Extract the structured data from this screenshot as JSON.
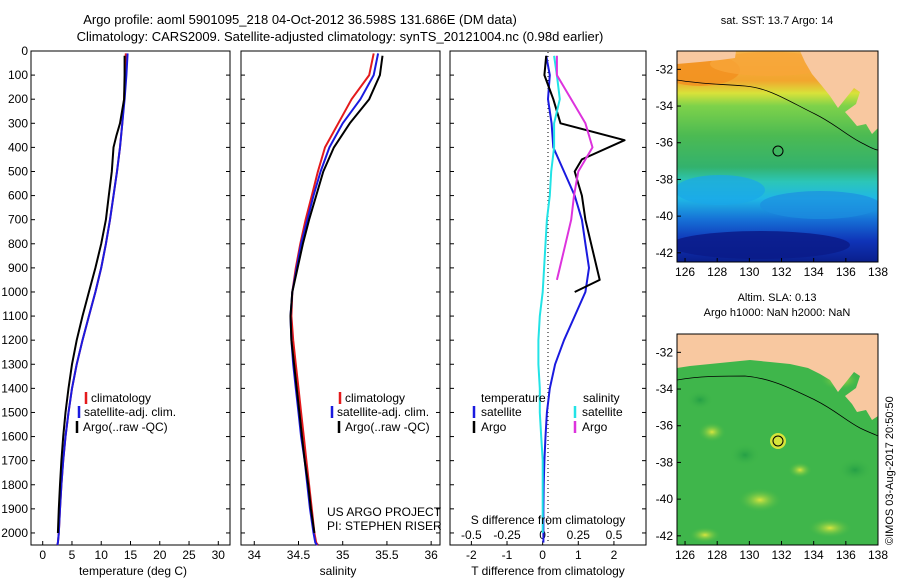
{
  "header": {
    "line1": "Argo profile: aoml 5901095_218 04-Oct-2012 36.598S 131.686E (DM data)",
    "line2": "Climatology: CARS2009. Satellite-adjusted climatology: synTS_20121004.nc (0.98d earlier)"
  },
  "colors": {
    "climatology": "#e41a1c",
    "satellite": "#1a1adf",
    "argo": "#000000",
    "salinity_sat": "#22e3e6",
    "salinity_argo": "#dd33dd",
    "land": "#f8c8a0"
  },
  "depth_axis": {
    "ticks": [
      "0",
      "100",
      "200",
      "300",
      "400",
      "500",
      "600",
      "700",
      "800",
      "900",
      "1000",
      "1100",
      "1200",
      "1300",
      "1400",
      "1500",
      "1600",
      "1700",
      "1800",
      "1900",
      "2000"
    ]
  },
  "temperature_panel": {
    "xlabel": "temperature (deg C)",
    "xticks": [
      "0",
      "5",
      "10",
      "15",
      "20",
      "25",
      "30"
    ],
    "legend": [
      "climatology",
      "satellite-adj. clim.",
      "Argo(..raw -QC)"
    ]
  },
  "salinity_panel": {
    "xlabel": "salinity",
    "xticks": [
      "34",
      "34.5",
      "35",
      "35.5",
      "36"
    ],
    "legend": [
      "climatology",
      "satellite-adj. clim.",
      "Argo(..raw -QC)"
    ],
    "credit1": "US ARGO PROJECT",
    "credit2": "PI: STEPHEN RISER"
  },
  "difference_panel": {
    "xlabel": "T difference from climatology",
    "top_label": "S difference from climatology",
    "t_ticks": [
      "-2",
      "-1",
      "0",
      "1",
      "2"
    ],
    "s_ticks": [
      "-0.5",
      "-0.25",
      "0",
      "0.25",
      "0.5"
    ],
    "legend_temp_title": "temperature",
    "legend_sal_title": "salinity",
    "legend_temp": [
      "satellite",
      "Argo"
    ],
    "legend_sal": [
      "satellite",
      "Argo"
    ]
  },
  "map_sst": {
    "title": "sat. SST: 13.7  Argo: 14",
    "yticks": [
      "-32",
      "-34",
      "-36",
      "-38",
      "-40",
      "-42"
    ],
    "xticks": [
      "126",
      "128",
      "130",
      "132",
      "134",
      "136",
      "138"
    ]
  },
  "map_sla": {
    "title1": "Altim. SLA: 0.13",
    "title2": "Argo h1000: NaN h2000: NaN",
    "yticks": [
      "-32",
      "-34",
      "-36",
      "-38",
      "-40",
      "-42"
    ],
    "xticks": [
      "126",
      "128",
      "130",
      "132",
      "134",
      "136",
      "138"
    ]
  },
  "watermark": "©IMOS 03-Aug-2017 20:50:50",
  "chart_data": [
    {
      "type": "line",
      "name": "temperature profile",
      "xlabel": "temperature (deg C)",
      "ylabel": "",
      "xlim": [
        -2,
        32
      ],
      "ylim": [
        2050,
        0
      ],
      "series": [
        {
          "name": "climatology",
          "x": [
            14.2,
            14.1,
            13.9,
            13.6,
            13.2,
            12.7,
            12.1,
            11.5,
            10.8,
            10.0,
            9.0,
            7.9,
            6.8,
            5.8,
            5.0,
            4.4,
            3.9,
            3.5,
            3.2,
            2.95,
            2.75,
            2.6,
            2.5
          ],
          "y": [
            10,
            100,
            200,
            300,
            400,
            500,
            600,
            700,
            800,
            900,
            1000,
            1100,
            1200,
            1300,
            1400,
            1500,
            1600,
            1700,
            1800,
            1900,
            2000,
            2040,
            2050
          ]
        },
        {
          "name": "satellite-adj. clim.",
          "x": [
            14.5,
            14.3,
            14.0,
            13.6,
            13.2,
            12.7,
            12.1,
            11.5,
            10.8,
            10.0,
            9.0,
            7.9,
            6.8,
            5.8,
            5.0,
            4.4,
            3.9,
            3.5,
            3.2,
            2.95,
            2.75,
            2.6,
            2.5
          ],
          "y": [
            10,
            100,
            200,
            300,
            400,
            500,
            600,
            700,
            800,
            900,
            1000,
            1100,
            1200,
            1300,
            1400,
            1500,
            1600,
            1700,
            1800,
            1900,
            2000,
            2040,
            2050
          ]
        },
        {
          "name": "Argo(..raw -QC)",
          "x": [
            14.0,
            14.0,
            13.9,
            13.2,
            12.6,
            12.1,
            11.8,
            11.3,
            10.8,
            10.0,
            9.0,
            7.9,
            6.8,
            5.8,
            5.0,
            4.4,
            3.9,
            3.5,
            3.2,
            2.95,
            2.75,
            2.6
          ],
          "y": [
            20,
            100,
            200,
            300,
            350,
            400,
            500,
            600,
            700,
            800,
            900,
            1000,
            1100,
            1200,
            1300,
            1400,
            1500,
            1600,
            1700,
            1800,
            1900,
            2000
          ]
        }
      ]
    },
    {
      "type": "line",
      "name": "salinity profile",
      "xlabel": "salinity",
      "ylabel": "",
      "xlim": [
        33.85,
        36.1
      ],
      "ylim": [
        2050,
        0
      ],
      "series": [
        {
          "name": "climatology",
          "x": [
            35.35,
            35.3,
            35.1,
            34.95,
            34.8,
            34.72,
            34.65,
            34.58,
            34.52,
            34.47,
            34.43,
            34.42,
            34.44,
            34.47,
            34.5,
            34.53,
            34.56,
            34.59,
            34.62,
            34.65,
            34.68,
            34.7,
            34.72
          ],
          "y": [
            10,
            100,
            200,
            300,
            400,
            500,
            600,
            700,
            800,
            900,
            1000,
            1100,
            1200,
            1300,
            1400,
            1500,
            1600,
            1700,
            1800,
            1900,
            2000,
            2040,
            2050
          ]
        },
        {
          "name": "satellite-adj. clim.",
          "x": [
            35.4,
            35.35,
            35.2,
            35.0,
            34.85,
            34.75,
            34.67,
            34.6,
            34.53,
            34.48,
            34.43,
            34.41,
            34.42,
            34.44,
            34.47,
            34.5,
            34.53,
            34.57,
            34.6,
            34.63,
            34.67,
            34.69,
            34.71
          ],
          "y": [
            10,
            100,
            200,
            300,
            400,
            500,
            600,
            700,
            800,
            900,
            1000,
            1100,
            1200,
            1300,
            1400,
            1500,
            1600,
            1700,
            1800,
            1900,
            2000,
            2040,
            2050
          ]
        },
        {
          "name": "Argo(..raw -QC)",
          "x": [
            35.45,
            35.42,
            35.3,
            35.08,
            34.9,
            34.78,
            34.7,
            34.62,
            34.55,
            34.49,
            34.43,
            34.41,
            34.42,
            34.45,
            34.48,
            34.51,
            34.54,
            34.57,
            34.61,
            34.64,
            34.68
          ],
          "y": [
            20,
            100,
            200,
            300,
            400,
            500,
            600,
            700,
            800,
            900,
            1000,
            1100,
            1200,
            1300,
            1400,
            1500,
            1600,
            1700,
            1800,
            1900,
            2000
          ]
        }
      ]
    },
    {
      "type": "line",
      "name": "difference profile",
      "xlabel": "T difference from climatology",
      "ylabel": "",
      "xlim": [
        -2.6,
        2.9
      ],
      "ylim": [
        2050,
        0
      ],
      "series": [
        {
          "name": "temperature satellite",
          "x": [
            0.1,
            0.2,
            0.15,
            0.25,
            0.3,
            0.6,
            0.9,
            1.1,
            1.2,
            1.3,
            1.2,
            0.9,
            0.6,
            0.35,
            0.2,
            0.12,
            0.08,
            0.05,
            0.03,
            0.02,
            0.02,
            0.02
          ],
          "y": [
            20,
            100,
            200,
            300,
            400,
            500,
            600,
            700,
            800,
            900,
            1000,
            1100,
            1200,
            1300,
            1400,
            1500,
            1600,
            1700,
            1800,
            1900,
            2000,
            2040
          ]
        },
        {
          "name": "temperature Argo",
          "x": [
            0.1,
            0.05,
            0.3,
            0.5,
            2.3,
            1.1,
            0.9,
            1.1,
            1.2,
            1.6,
            0.9
          ],
          "y": [
            20,
            100,
            200,
            300,
            370,
            450,
            500,
            600,
            700,
            950,
            1000
          ]
        },
        {
          "name": "salinity satellite",
          "x": [
            0.08,
            0.1,
            0.12,
            0.08,
            0.08,
            0.06,
            0.05,
            0.03,
            0.02,
            0.01,
            0.0,
            -0.02,
            -0.03,
            -0.03,
            -0.02,
            -0.02,
            -0.01,
            0.0,
            0.0,
            0.0,
            0.0
          ],
          "y": [
            20,
            100,
            200,
            300,
            400,
            500,
            600,
            700,
            800,
            900,
            1000,
            1100,
            1200,
            1300,
            1400,
            1500,
            1600,
            1700,
            1800,
            1900,
            2000
          ]
        },
        {
          "name": "salinity Argo",
          "x": [
            0.1,
            0.1,
            0.2,
            0.3,
            0.35,
            0.25,
            0.22,
            0.2,
            0.16,
            0.12,
            0.1
          ],
          "y": [
            20,
            100,
            200,
            300,
            400,
            500,
            600,
            700,
            800,
            900,
            950
          ]
        }
      ]
    },
    {
      "type": "heatmap",
      "name": "sat. SST map",
      "title": "sat. SST: 13.7  Argo: 14",
      "xlim": [
        125.5,
        138
      ],
      "ylim": [
        -42.5,
        -31
      ],
      "marker": {
        "lon": 131.686,
        "lat": -36.598
      }
    },
    {
      "type": "heatmap",
      "name": "Altim. SLA map",
      "title": "Altim. SLA: 0.13",
      "xlim": [
        125.5,
        138
      ],
      "ylim": [
        -42.5,
        -31
      ],
      "marker": {
        "lon": 131.686,
        "lat": -36.598
      }
    }
  ]
}
